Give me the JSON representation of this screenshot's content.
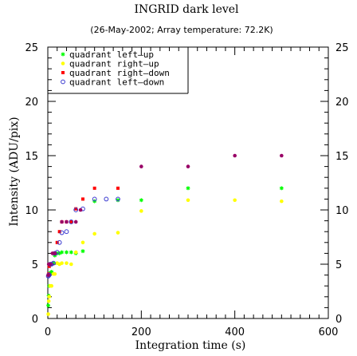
{
  "chart_data": {
    "type": "scatter",
    "title": "INGRID dark level",
    "subtitle": "(26-May-2002; Array temperature: 72.2K)",
    "xlabel": "Integration time (s)",
    "ylabel": "Intensity (ADU/pix)",
    "xlim": [
      0,
      600
    ],
    "ylim": [
      0,
      25
    ],
    "x_ticks": [
      0,
      200,
      400,
      600
    ],
    "y_ticks": [
      0,
      5,
      10,
      15,
      20,
      25
    ],
    "y_ticks_right": [
      0,
      5,
      10,
      15,
      20,
      25
    ],
    "grid": false,
    "legend_position": "top-left",
    "series": [
      {
        "name": "quadrant left–up",
        "color": "#00ff00",
        "marker": "asterisk",
        "points": [
          [
            1,
            1.2
          ],
          [
            2,
            2.1
          ],
          [
            3,
            3.0
          ],
          [
            5,
            4.2
          ],
          [
            8,
            4.3
          ],
          [
            12,
            5.1
          ],
          [
            15,
            5.8
          ],
          [
            20,
            6.0
          ],
          [
            25,
            6.0
          ],
          [
            30,
            6.1
          ],
          [
            40,
            6.1
          ],
          [
            50,
            6.1
          ],
          [
            60,
            6.0
          ],
          [
            75,
            6.2
          ],
          [
            100,
            10.8
          ],
          [
            150,
            10.9
          ],
          [
            200,
            10.9
          ],
          [
            300,
            12.0
          ],
          [
            500,
            12.0
          ]
        ]
      },
      {
        "name": "quadrant right–up",
        "color": "#ffff00",
        "marker": "dot",
        "points": [
          [
            1,
            0.4
          ],
          [
            2,
            1.6
          ],
          [
            3,
            2.0
          ],
          [
            5,
            3.0
          ],
          [
            8,
            3.0
          ],
          [
            12,
            4.1
          ],
          [
            15,
            4.1
          ],
          [
            20,
            5.1
          ],
          [
            25,
            5.0
          ],
          [
            30,
            5.1
          ],
          [
            40,
            5.1
          ],
          [
            50,
            5.0
          ],
          [
            60,
            6.1
          ],
          [
            75,
            7.0
          ],
          [
            100,
            7.8
          ],
          [
            150,
            7.9
          ],
          [
            200,
            9.9
          ],
          [
            300,
            10.9
          ],
          [
            400,
            10.9
          ],
          [
            500,
            10.8
          ]
        ]
      },
      {
        "name": "quadrant right–down",
        "color": "#ff0000",
        "marker": "square",
        "points": [
          [
            1,
            4.0
          ],
          [
            2,
            4.1
          ],
          [
            3,
            4.8
          ],
          [
            5,
            5.0
          ],
          [
            8,
            5.0
          ],
          [
            12,
            6.0
          ],
          [
            15,
            6.0
          ],
          [
            20,
            7.0
          ],
          [
            25,
            8.0
          ],
          [
            30,
            8.9
          ],
          [
            40,
            8.9
          ],
          [
            50,
            8.9
          ],
          [
            60,
            10.1
          ],
          [
            75,
            11.0
          ],
          [
            100,
            12.0
          ],
          [
            150,
            12.0
          ]
        ]
      },
      {
        "name": "quadrant left–down",
        "color": "#3a3ad0",
        "marker": "circle",
        "points": [
          [
            1,
            3.9
          ],
          [
            2,
            4.0
          ],
          [
            3,
            4.0
          ],
          [
            5,
            5.0
          ],
          [
            8,
            5.0
          ],
          [
            12,
            5.1
          ],
          [
            15,
            6.0
          ],
          [
            20,
            6.1
          ],
          [
            25,
            7.0
          ],
          [
            30,
            7.9
          ],
          [
            40,
            8.0
          ],
          [
            50,
            8.9
          ],
          [
            60,
            10.0
          ],
          [
            75,
            10.1
          ],
          [
            100,
            11.0
          ],
          [
            125,
            11.0
          ],
          [
            150,
            11.0
          ]
        ]
      },
      {
        "name": "",
        "color": "#990066",
        "marker": "dot",
        "points": [
          [
            1,
            4.0
          ],
          [
            2,
            5.0
          ],
          [
            5,
            5.0
          ],
          [
            10,
            6.0
          ],
          [
            15,
            6.0
          ],
          [
            30,
            8.9
          ],
          [
            40,
            8.9
          ],
          [
            60,
            8.9
          ],
          [
            70,
            10.0
          ],
          [
            200,
            14.0
          ],
          [
            300,
            14.0
          ],
          [
            400,
            15.0
          ],
          [
            500,
            15.0
          ]
        ]
      }
    ]
  }
}
